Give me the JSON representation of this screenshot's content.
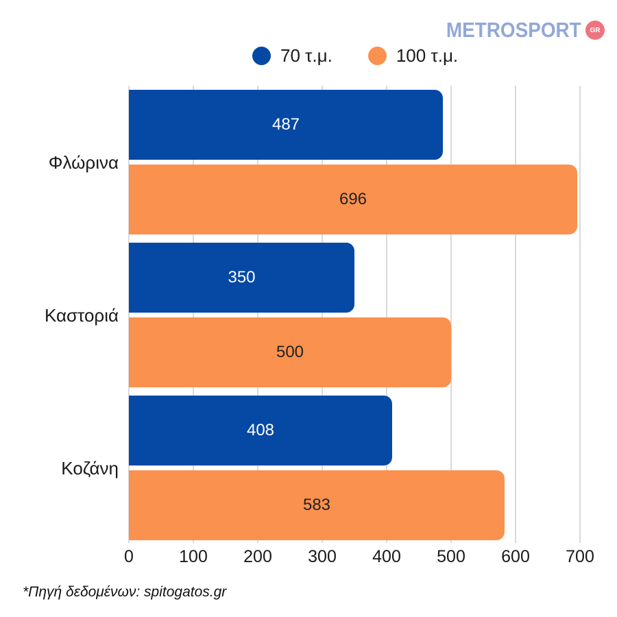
{
  "logo": {
    "text": "METROSPORT",
    "badge": "GR",
    "text_color": "#92a8d6",
    "badge_color": "#ee7480"
  },
  "legend": [
    {
      "label": "70 τ.μ.",
      "color": "#0549a5"
    },
    {
      "label": "100 τ.μ.",
      "color": "#fb914e"
    }
  ],
  "chart_data": {
    "type": "bar",
    "orientation": "horizontal",
    "title": "",
    "categories": [
      "Φλώρινα",
      "Καστοριά",
      "Κοζάνη"
    ],
    "series": [
      {
        "name": "70 τ.μ.",
        "color": "#0549a5",
        "label_color": "#ffffff",
        "values": [
          487,
          350,
          408
        ]
      },
      {
        "name": "100 τ.μ.",
        "color": "#fb914e",
        "label_color": "#222222",
        "values": [
          696,
          500,
          583
        ]
      }
    ],
    "xlim": [
      0,
      700
    ],
    "xticks": [
      0,
      100,
      200,
      300,
      400,
      500,
      600,
      700
    ],
    "grid": true,
    "legend_position": "top",
    "value_labels": "inside-center"
  },
  "footer": {
    "source_note": "*Πηγή δεδομένων:  spitogatos.gr"
  }
}
